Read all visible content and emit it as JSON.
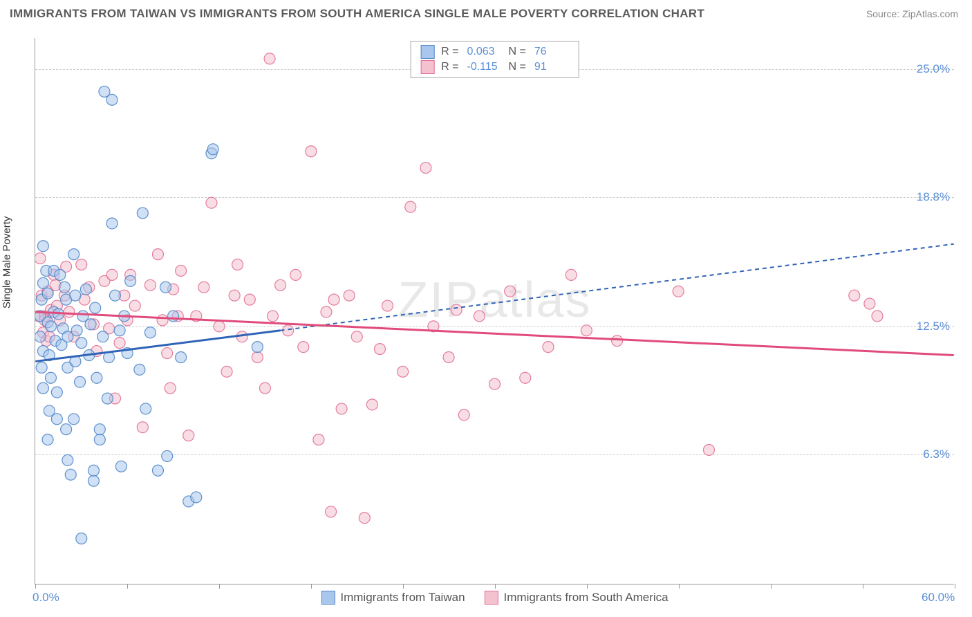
{
  "title": "IMMIGRANTS FROM TAIWAN VS IMMIGRANTS FROM SOUTH AMERICA SINGLE MALE POVERTY CORRELATION CHART",
  "source": "Source: ZipAtlas.com",
  "watermark": "ZIPatlas",
  "y_axis_label": "Single Male Poverty",
  "chart": {
    "type": "scatter",
    "xlim": [
      0,
      60
    ],
    "ylim": [
      0,
      26.5
    ],
    "x_ticks": [
      0,
      6,
      12,
      18,
      24,
      30,
      36,
      42,
      48,
      54,
      60
    ],
    "x_tick_labels": {
      "0": "0.0%",
      "60": "60.0%"
    },
    "y_grid": [
      6.3,
      12.5,
      18.8,
      25.0
    ],
    "y_tick_labels": [
      "6.3%",
      "12.5%",
      "18.8%",
      "25.0%"
    ],
    "background_color": "#ffffff",
    "grid_color": "#cccccc",
    "axis_color": "#999999",
    "tick_label_color": "#5b8fd6",
    "marker_radius": 8,
    "marker_opacity": 0.55,
    "marker_stroke_opacity": 0.9,
    "trend_line_width": 3,
    "trend_dash": "6,5"
  },
  "series": [
    {
      "name": "Immigrants from Taiwan",
      "color_fill": "#a9c7ec",
      "color_stroke": "#4f86c6",
      "line_color": "#2f63b7",
      "R": "0.063",
      "N": "76",
      "trend_solid": {
        "x1": 0,
        "y1": 10.8,
        "x2": 16,
        "y2": 12.3
      },
      "trend_dash": {
        "x1": 16,
        "y1": 12.3,
        "x2": 60,
        "y2": 16.5
      },
      "points": [
        [
          0.3,
          13.0
        ],
        [
          0.3,
          12.0
        ],
        [
          0.4,
          10.5
        ],
        [
          0.4,
          13.8
        ],
        [
          0.5,
          14.6
        ],
        [
          0.5,
          11.3
        ],
        [
          0.5,
          9.5
        ],
        [
          0.5,
          16.4
        ],
        [
          0.7,
          15.2
        ],
        [
          0.8,
          12.7
        ],
        [
          0.8,
          14.1
        ],
        [
          0.8,
          7.0
        ],
        [
          0.9,
          11.1
        ],
        [
          0.9,
          8.4
        ],
        [
          1.0,
          12.5
        ],
        [
          1.0,
          10.0
        ],
        [
          1.2,
          15.2
        ],
        [
          1.2,
          13.2
        ],
        [
          1.3,
          11.8
        ],
        [
          1.4,
          8.0
        ],
        [
          1.4,
          9.3
        ],
        [
          1.5,
          13.1
        ],
        [
          1.6,
          15.0
        ],
        [
          1.7,
          11.6
        ],
        [
          1.8,
          12.4
        ],
        [
          1.9,
          14.4
        ],
        [
          2.0,
          7.5
        ],
        [
          2.0,
          13.8
        ],
        [
          2.1,
          12.0
        ],
        [
          2.1,
          10.5
        ],
        [
          2.1,
          6.0
        ],
        [
          2.3,
          5.3
        ],
        [
          2.5,
          8.0
        ],
        [
          2.5,
          16.0
        ],
        [
          2.6,
          14.0
        ],
        [
          2.6,
          10.8
        ],
        [
          2.7,
          12.3
        ],
        [
          2.9,
          9.8
        ],
        [
          3.0,
          11.7
        ],
        [
          3.0,
          2.2
        ],
        [
          3.1,
          13.0
        ],
        [
          3.3,
          14.3
        ],
        [
          3.5,
          11.1
        ],
        [
          3.6,
          12.6
        ],
        [
          3.8,
          5.0
        ],
        [
          3.8,
          5.5
        ],
        [
          3.9,
          13.4
        ],
        [
          4.0,
          10.0
        ],
        [
          4.2,
          7.0
        ],
        [
          4.2,
          7.5
        ],
        [
          4.4,
          12.0
        ],
        [
          4.5,
          23.9
        ],
        [
          4.7,
          9.0
        ],
        [
          4.8,
          11.0
        ],
        [
          5.0,
          23.5
        ],
        [
          5.0,
          17.5
        ],
        [
          5.2,
          14.0
        ],
        [
          5.5,
          12.3
        ],
        [
          5.6,
          5.7
        ],
        [
          5.8,
          13.0
        ],
        [
          6.0,
          11.2
        ],
        [
          6.2,
          14.7
        ],
        [
          6.8,
          10.4
        ],
        [
          7.0,
          18.0
        ],
        [
          7.2,
          8.5
        ],
        [
          7.5,
          12.2
        ],
        [
          8.0,
          5.5
        ],
        [
          8.5,
          14.4
        ],
        [
          8.6,
          6.2
        ],
        [
          9.0,
          13.0
        ],
        [
          9.5,
          11.0
        ],
        [
          10.0,
          4.0
        ],
        [
          10.5,
          4.2
        ],
        [
          11.5,
          20.9
        ],
        [
          11.6,
          21.1
        ],
        [
          14.5,
          11.5
        ]
      ]
    },
    {
      "name": "Immigrants from South America",
      "color_fill": "#f4c1cf",
      "color_stroke": "#e16f93",
      "line_color": "#e14b7b",
      "R": "-0.115",
      "N": "91",
      "trend_solid": {
        "x1": 0,
        "y1": 13.2,
        "x2": 60,
        "y2": 11.1
      },
      "trend_dash": null,
      "points": [
        [
          0.2,
          13.0
        ],
        [
          0.3,
          15.8
        ],
        [
          0.4,
          14.0
        ],
        [
          0.5,
          12.2
        ],
        [
          0.6,
          13.0
        ],
        [
          0.6,
          12.8
        ],
        [
          0.7,
          11.8
        ],
        [
          0.8,
          14.2
        ],
        [
          0.9,
          12.0
        ],
        [
          1.0,
          13.3
        ],
        [
          1.2,
          15.0
        ],
        [
          1.3,
          14.5
        ],
        [
          1.4,
          13.5
        ],
        [
          1.6,
          12.8
        ],
        [
          1.9,
          14.0
        ],
        [
          2.0,
          15.4
        ],
        [
          2.2,
          13.2
        ],
        [
          2.5,
          12.0
        ],
        [
          3.0,
          15.5
        ],
        [
          3.2,
          13.8
        ],
        [
          3.5,
          14.4
        ],
        [
          3.8,
          12.6
        ],
        [
          4.0,
          11.3
        ],
        [
          4.5,
          14.7
        ],
        [
          4.8,
          12.4
        ],
        [
          5.0,
          15.0
        ],
        [
          5.2,
          9.0
        ],
        [
          5.5,
          11.7
        ],
        [
          5.8,
          14.0
        ],
        [
          6.0,
          12.8
        ],
        [
          6.2,
          15.0
        ],
        [
          6.5,
          13.5
        ],
        [
          7.0,
          7.6
        ],
        [
          7.5,
          14.5
        ],
        [
          8.0,
          16.0
        ],
        [
          8.3,
          12.8
        ],
        [
          8.6,
          11.2
        ],
        [
          8.8,
          9.5
        ],
        [
          9.0,
          14.3
        ],
        [
          9.3,
          13.0
        ],
        [
          9.5,
          15.2
        ],
        [
          10.0,
          7.2
        ],
        [
          10.5,
          13.0
        ],
        [
          11.0,
          14.4
        ],
        [
          11.5,
          18.5
        ],
        [
          12.0,
          12.5
        ],
        [
          12.5,
          10.3
        ],
        [
          13.0,
          14.0
        ],
        [
          13.2,
          15.5
        ],
        [
          13.5,
          12.0
        ],
        [
          14.0,
          13.8
        ],
        [
          14.5,
          11.0
        ],
        [
          15.0,
          9.5
        ],
        [
          15.3,
          25.5
        ],
        [
          15.5,
          13.0
        ],
        [
          16.0,
          14.5
        ],
        [
          16.5,
          12.3
        ],
        [
          17.0,
          15.0
        ],
        [
          17.5,
          11.5
        ],
        [
          18.0,
          21.0
        ],
        [
          18.5,
          7.0
        ],
        [
          19.0,
          13.2
        ],
        [
          19.3,
          3.5
        ],
        [
          19.5,
          13.8
        ],
        [
          20.0,
          8.5
        ],
        [
          20.5,
          14.0
        ],
        [
          21.0,
          12.0
        ],
        [
          21.5,
          3.2
        ],
        [
          22.0,
          8.7
        ],
        [
          22.5,
          11.4
        ],
        [
          23.0,
          13.5
        ],
        [
          24.0,
          10.3
        ],
        [
          24.5,
          18.3
        ],
        [
          25.5,
          20.2
        ],
        [
          26.0,
          12.5
        ],
        [
          27.0,
          11.0
        ],
        [
          27.5,
          13.3
        ],
        [
          28.0,
          8.2
        ],
        [
          29.0,
          13.0
        ],
        [
          30.0,
          9.7
        ],
        [
          31.0,
          14.2
        ],
        [
          32.0,
          10.0
        ],
        [
          33.5,
          11.5
        ],
        [
          35.0,
          15.0
        ],
        [
          36.0,
          12.3
        ],
        [
          38.0,
          11.8
        ],
        [
          42.0,
          14.2
        ],
        [
          44.0,
          6.5
        ],
        [
          53.5,
          14.0
        ],
        [
          54.5,
          13.6
        ],
        [
          55.0,
          13.0
        ]
      ]
    }
  ],
  "legend_top": {
    "r_label": "R =",
    "n_label": "N ="
  },
  "legend_bottom": [
    "Immigrants from Taiwan",
    "Immigrants from South America"
  ]
}
